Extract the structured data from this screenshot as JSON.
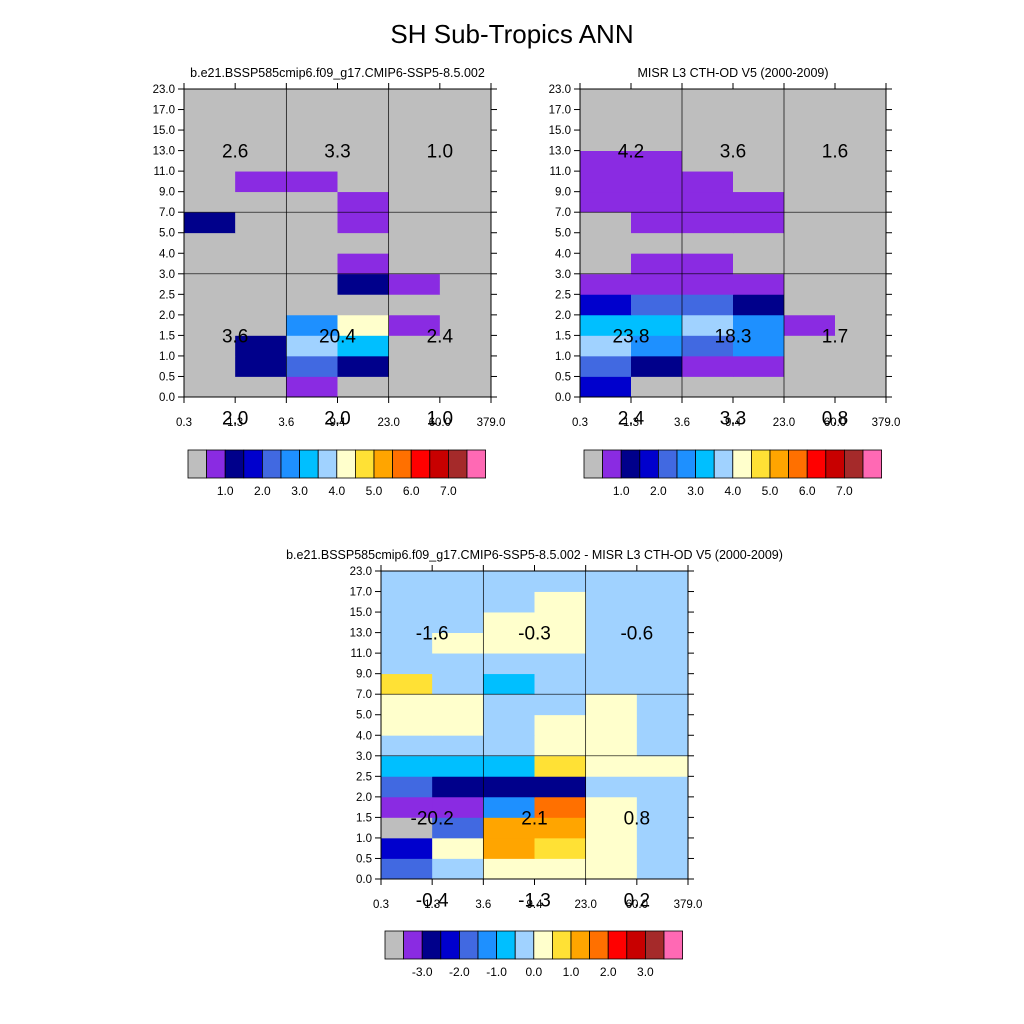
{
  "title": "SH Sub-Tropics ANN",
  "x_ticks": [
    "0.3",
    "1.3",
    "3.6",
    "9.4",
    "23.0",
    "60.0",
    "379.0"
  ],
  "y_ticks": [
    "0.0",
    "0.5",
    "1.0",
    "1.5",
    "2.0",
    "2.5",
    "3.0",
    "4.0",
    "5.0",
    "7.0",
    "9.0",
    "11.0",
    "13.0",
    "15.0",
    "17.0",
    "23.0"
  ],
  "palette": {
    "missing": "#bebebe",
    "levels": [
      "#8a2be2",
      "#00008b",
      "#0000cd",
      "#4169e1",
      "#1e90ff",
      "#00bfff",
      "#a0d2ff",
      "#ffffcc",
      "#ffe135",
      "#ffa500",
      "#ff7000",
      "#ff0000",
      "#c80000",
      "#a52a2a",
      "#ff69b4"
    ]
  },
  "chart_data": [
    {
      "type": "heatmap",
      "title": "b.e21.BSSP585cmip6.f09_g17.CMIP6-SSP5-8.5.002",
      "x_bin_edges": [
        "0.3",
        "1.3",
        "3.6",
        "9.4",
        "23.0",
        "60.0",
        "379.0"
      ],
      "y_bin_edges": [
        "0.0",
        "0.5",
        "1.0",
        "1.5",
        "2.0",
        "2.5",
        "3.0",
        "4.0",
        "5.0",
        "7.0",
        "9.0",
        "11.0",
        "13.0",
        "15.0",
        "17.0",
        "23.0"
      ],
      "cells_note": "rows bottom (0.0-0.5) to top (17.0-23.0); values are palette color indices, -1 = missing (gray)",
      "cells": [
        [
          -1,
          -1,
          0,
          -1,
          -1,
          -1
        ],
        [
          -1,
          1,
          3,
          1,
          -1,
          -1
        ],
        [
          -1,
          1,
          6,
          5,
          -1,
          -1
        ],
        [
          -1,
          -1,
          4,
          7,
          0,
          -1
        ],
        [
          -1,
          -1,
          -1,
          -1,
          -1,
          -1
        ],
        [
          -1,
          -1,
          -1,
          1,
          0,
          -1
        ],
        [
          -1,
          -1,
          -1,
          0,
          -1,
          -1
        ],
        [
          -1,
          -1,
          -1,
          -1,
          -1,
          -1
        ],
        [
          1,
          -1,
          -1,
          0,
          -1,
          -1
        ],
        [
          -1,
          -1,
          -1,
          0,
          -1,
          -1
        ],
        [
          -1,
          0,
          0,
          -1,
          -1,
          -1
        ],
        [
          -1,
          -1,
          -1,
          -1,
          -1,
          -1
        ],
        [
          -1,
          -1,
          -1,
          -1,
          -1,
          -1
        ],
        [
          -1,
          -1,
          -1,
          -1,
          -1,
          -1
        ],
        [
          -1,
          -1,
          -1,
          -1,
          -1,
          -1
        ]
      ],
      "annotations": [
        {
          "text": "3.6",
          "x": 1.3,
          "y": 1.5
        },
        {
          "text": "20.4",
          "x": 9.4,
          "y": 1.5
        },
        {
          "text": "2.4",
          "x": 60.0,
          "y": 1.5
        },
        {
          "text": "2.0",
          "x": 1.3,
          "y": 4.5
        },
        {
          "text": "2.0",
          "x": 9.4,
          "y": 4.5
        },
        {
          "text": "1.0",
          "x": 60.0,
          "y": 4.5
        },
        {
          "text": "2.6",
          "x": 1.3,
          "y": 13.0
        },
        {
          "text": "3.3",
          "x": 9.4,
          "y": 13.0
        },
        {
          "text": "1.0",
          "x": 60.0,
          "y": 13.0
        }
      ],
      "colorbar_labels": [
        "1.0",
        "2.0",
        "3.0",
        "4.0",
        "5.0",
        "6.0",
        "7.0"
      ]
    },
    {
      "type": "heatmap",
      "title": "MISR L3 CTH-OD V5 (2000-2009)",
      "x_bin_edges": [
        "0.3",
        "1.3",
        "3.6",
        "9.4",
        "23.0",
        "60.0",
        "379.0"
      ],
      "y_bin_edges": [
        "0.0",
        "0.5",
        "1.0",
        "1.5",
        "2.0",
        "2.5",
        "3.0",
        "4.0",
        "5.0",
        "7.0",
        "9.0",
        "11.0",
        "13.0",
        "15.0",
        "17.0",
        "23.0"
      ],
      "cells_note": "rows bottom (0.0-0.5) to top (17.0-23.0); values are palette color indices, -1 = missing (gray)",
      "cells": [
        [
          2,
          -1,
          -1,
          -1,
          -1,
          -1
        ],
        [
          3,
          1,
          0,
          0,
          -1,
          -1
        ],
        [
          6,
          4,
          3,
          4,
          -1,
          -1
        ],
        [
          5,
          5,
          6,
          4,
          0,
          -1
        ],
        [
          2,
          3,
          3,
          1,
          -1,
          -1
        ],
        [
          0,
          0,
          0,
          0,
          -1,
          -1
        ],
        [
          -1,
          0,
          0,
          -1,
          -1,
          -1
        ],
        [
          -1,
          -1,
          -1,
          -1,
          -1,
          -1
        ],
        [
          -1,
          0,
          0,
          0,
          -1,
          -1
        ],
        [
          0,
          0,
          0,
          0,
          -1,
          -1
        ],
        [
          0,
          0,
          0,
          -1,
          -1,
          -1
        ],
        [
          0,
          0,
          -1,
          -1,
          -1,
          -1
        ],
        [
          -1,
          -1,
          -1,
          -1,
          -1,
          -1
        ],
        [
          -1,
          -1,
          -1,
          -1,
          -1,
          -1
        ],
        [
          -1,
          -1,
          -1,
          -1,
          -1,
          -1
        ]
      ],
      "annotations": [
        {
          "text": "23.8",
          "x": 1.3,
          "y": 1.5
        },
        {
          "text": "18.3",
          "x": 9.4,
          "y": 1.5
        },
        {
          "text": "1.7",
          "x": 60.0,
          "y": 1.5
        },
        {
          "text": "2.4",
          "x": 1.3,
          "y": 4.5
        },
        {
          "text": "3.3",
          "x": 9.4,
          "y": 4.5
        },
        {
          "text": "0.8",
          "x": 60.0,
          "y": 4.5
        },
        {
          "text": "4.2",
          "x": 1.3,
          "y": 13.0
        },
        {
          "text": "3.6",
          "x": 9.4,
          "y": 13.0
        },
        {
          "text": "1.6",
          "x": 60.0,
          "y": 13.0
        }
      ],
      "colorbar_labels": [
        "1.0",
        "2.0",
        "3.0",
        "4.0",
        "5.0",
        "6.0",
        "7.0"
      ]
    },
    {
      "type": "heatmap",
      "title": "b.e21.BSSP585cmip6.f09_g17.CMIP6-SSP5-8.5.002 - MISR L3 CTH-OD V5 (2000-2009)",
      "x_bin_edges": [
        "0.3",
        "1.3",
        "3.6",
        "9.4",
        "23.0",
        "60.0",
        "379.0"
      ],
      "y_bin_edges": [
        "0.0",
        "0.5",
        "1.0",
        "1.5",
        "2.0",
        "2.5",
        "3.0",
        "4.0",
        "5.0",
        "7.0",
        "9.0",
        "11.0",
        "13.0",
        "15.0",
        "17.0",
        "23.0"
      ],
      "cells_note": "rows bottom (0.0-0.5) to top (17.0-23.0); values are palette color indices, -1 = missing (gray)",
      "cells": [
        [
          3,
          6,
          7,
          7,
          7,
          6
        ],
        [
          2,
          7,
          9,
          8,
          7,
          6
        ],
        [
          -1,
          3,
          9,
          9,
          7,
          6
        ],
        [
          0,
          0,
          4,
          10,
          7,
          6
        ],
        [
          3,
          1,
          1,
          1,
          6,
          6
        ],
        [
          5,
          5,
          5,
          8,
          7,
          7
        ],
        [
          6,
          6,
          6,
          7,
          7,
          6
        ],
        [
          7,
          7,
          6,
          7,
          7,
          6
        ],
        [
          7,
          7,
          6,
          6,
          7,
          6
        ],
        [
          8,
          6,
          5,
          6,
          6,
          6
        ],
        [
          6,
          6,
          6,
          6,
          6,
          6
        ],
        [
          6,
          7,
          7,
          7,
          6,
          6
        ],
        [
          6,
          6,
          7,
          7,
          6,
          6
        ],
        [
          6,
          6,
          6,
          7,
          6,
          6
        ],
        [
          6,
          6,
          6,
          6,
          6,
          6
        ]
      ],
      "annotations": [
        {
          "text": "-20.2",
          "x": 1.3,
          "y": 1.5
        },
        {
          "text": "2.1",
          "x": 9.4,
          "y": 1.5
        },
        {
          "text": "0.8",
          "x": 60.0,
          "y": 1.5
        },
        {
          "text": "-0.4",
          "x": 1.3,
          "y": 4.5
        },
        {
          "text": "-1.3",
          "x": 9.4,
          "y": 4.5
        },
        {
          "text": "0.2",
          "x": 60.0,
          "y": 4.5
        },
        {
          "text": "-1.6",
          "x": 1.3,
          "y": 13.0
        },
        {
          "text": "-0.3",
          "x": 9.4,
          "y": 13.0
        },
        {
          "text": "-0.6",
          "x": 60.0,
          "y": 13.0
        }
      ],
      "colorbar_labels": [
        "-3.0",
        "-2.0",
        "-1.0",
        "0.0",
        "1.0",
        "2.0",
        "3.0"
      ]
    }
  ]
}
